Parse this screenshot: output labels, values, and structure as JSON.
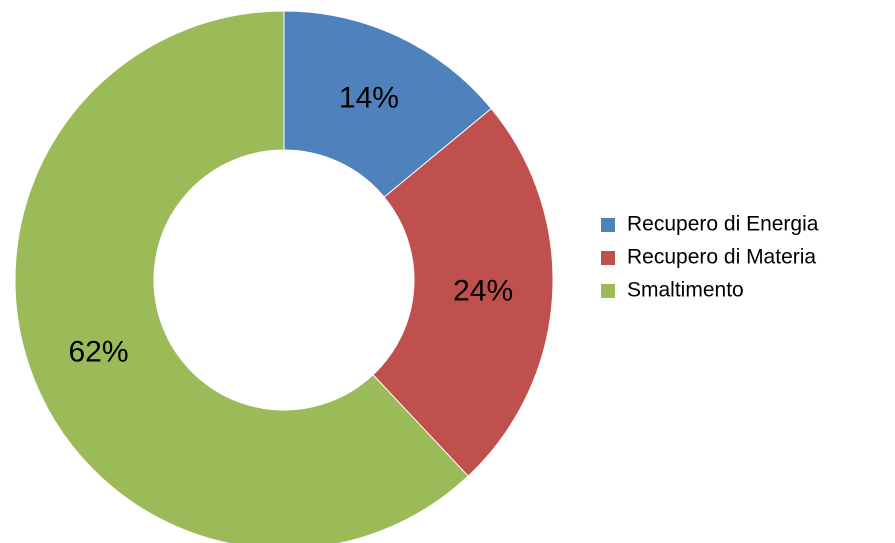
{
  "chart_data": {
    "type": "donut",
    "categories": [
      "Recupero di Energia",
      "Recupero di Materia",
      "Smaltimento"
    ],
    "values": [
      14,
      24,
      62
    ],
    "value_labels": [
      "14%",
      "24%",
      "62%"
    ],
    "colors": [
      "#4f81bd",
      "#c0504d",
      "#9bbb59"
    ],
    "legend": "right"
  }
}
